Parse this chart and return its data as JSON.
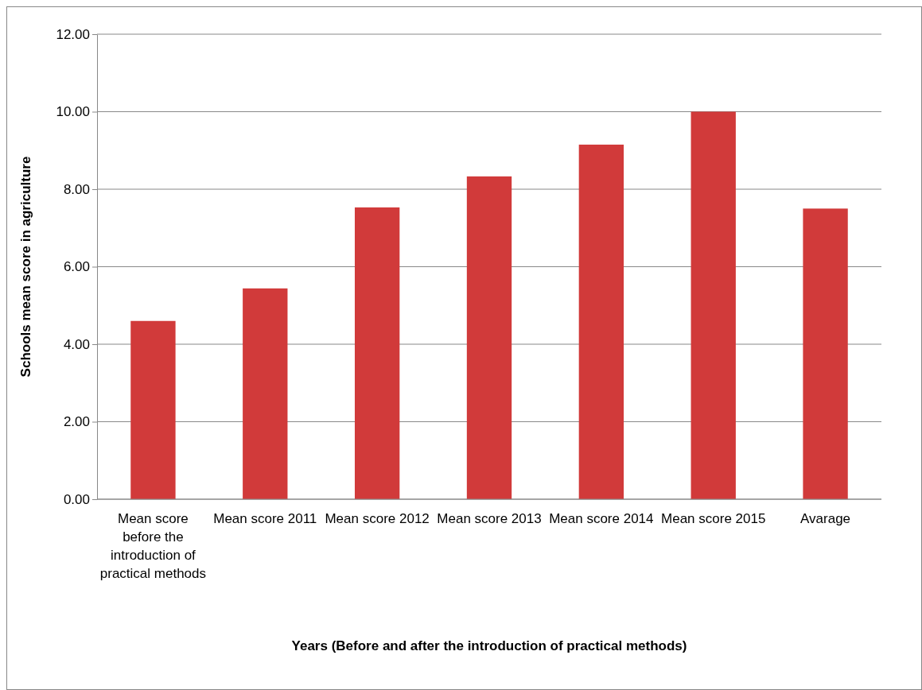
{
  "chart_data": {
    "type": "bar",
    "xlabel": "Years (Before and after the introduction of practical methods)",
    "ylabel": "Schools mean score in agriculture",
    "categories": [
      "Mean score before the introduction of practical methods",
      "Mean score 2011",
      "Mean score 2012",
      "Mean score 2013",
      "Mean score 2014",
      "Mean score 2015",
      "Avarage"
    ],
    "values": [
      4.6,
      5.44,
      7.53,
      8.33,
      9.15,
      10.0,
      7.5
    ],
    "color": "#d13a3a",
    "ylim": [
      0,
      12
    ],
    "yticks": [
      {
        "value": 0,
        "label": "0.00"
      },
      {
        "value": 2,
        "label": "2.00"
      },
      {
        "value": 4,
        "label": "4.00"
      },
      {
        "value": 6,
        "label": "6.00"
      },
      {
        "value": 8,
        "label": "8.00"
      },
      {
        "value": 10,
        "label": "10.00"
      },
      {
        "value": 12,
        "label": "12.00"
      }
    ],
    "grid": "y"
  }
}
